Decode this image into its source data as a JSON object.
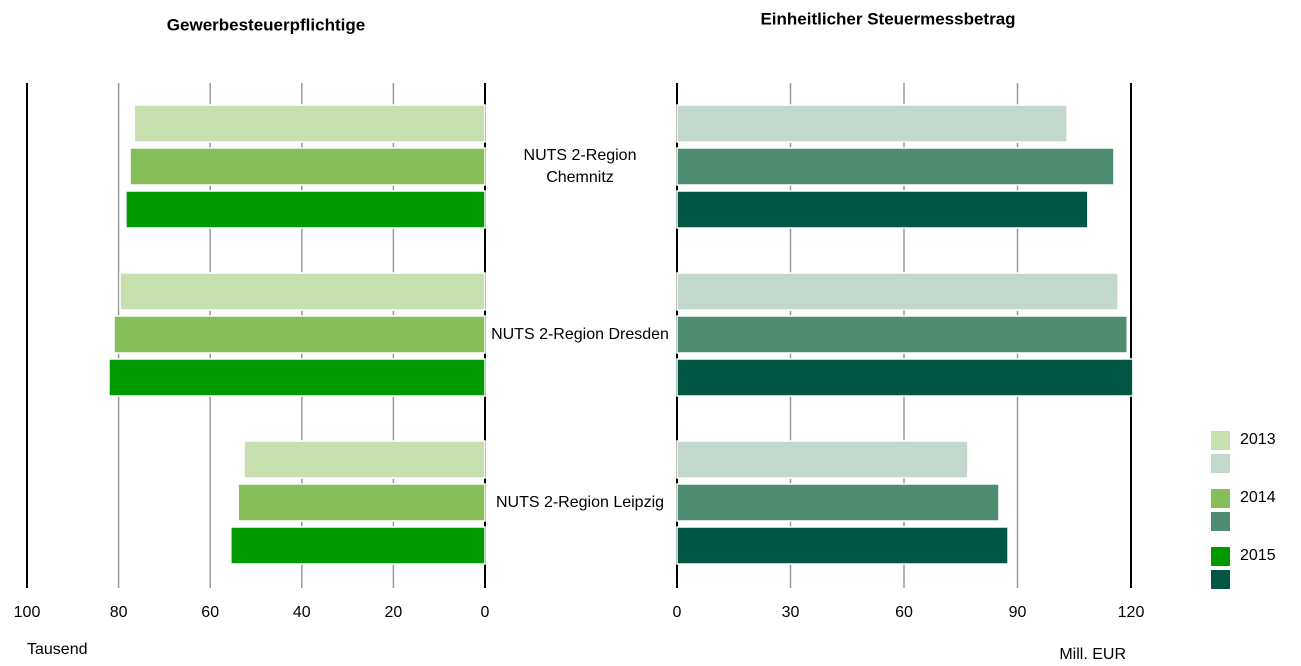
{
  "chart_data": [
    {
      "type": "bar",
      "orientation": "horizontal",
      "title": "Gewerbesteuerpflichtige",
      "xlabel": "Tausend",
      "categories": [
        "NUTS 2-Region Chemnitz",
        "NUTS 2-Region Dresden",
        "NUTS 2-Region Leipzig"
      ],
      "series": [
        {
          "name": "2013",
          "color": "#c8e0b0",
          "values": [
            76.6,
            79.7,
            52.6
          ]
        },
        {
          "name": "2014",
          "color": "#86bf5a",
          "values": [
            77.5,
            81.0,
            53.9
          ]
        },
        {
          "name": "2015",
          "color": "#009a00",
          "values": [
            78.4,
            82.1,
            55.5
          ]
        }
      ],
      "xlim": [
        100,
        0
      ],
      "xticks": [
        100,
        80,
        60,
        40,
        20,
        0
      ],
      "grid": true
    },
    {
      "type": "bar",
      "orientation": "horizontal",
      "title": "Einheitlicher Steuermessbetrag",
      "xlabel": "Mill. EUR",
      "series": [
        {
          "color": "#c3d8cc",
          "values": [
            103.1,
            116.6,
            76.9
          ]
        },
        {
          "color": "#4f8c72",
          "values": [
            115.5,
            119.0,
            85.1
          ]
        },
        {
          "color": "#005543",
          "values": [
            108.6,
            120.5,
            87.5
          ]
        }
      ],
      "xlim": [
        0,
        120
      ],
      "xticks": [
        0,
        30,
        60,
        90,
        120
      ],
      "grid": true
    }
  ]
}
